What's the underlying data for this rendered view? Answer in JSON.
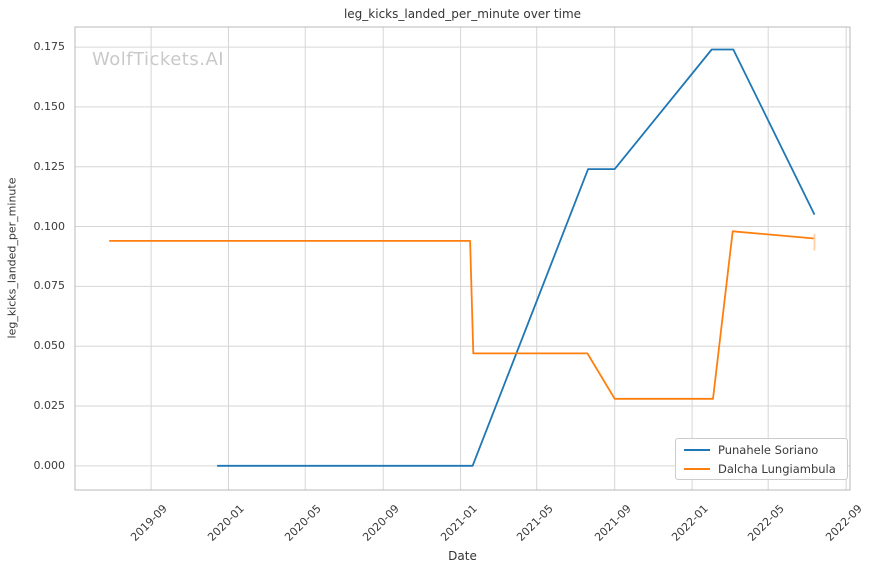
{
  "watermark": "WolfTickets.AI",
  "chart_data": {
    "type": "line",
    "title": "leg_kicks_landed_per_minute over time",
    "xlabel": "Date",
    "ylabel": "leg_kicks_landed_per_minute",
    "grid": true,
    "legend_position": "lower right",
    "x_ticks": [
      "2019-09",
      "2020-01",
      "2020-05",
      "2020-09",
      "2021-01",
      "2021-05",
      "2021-09",
      "2022-01",
      "2022-05",
      "2022-09"
    ],
    "y_ticks": [
      "0.000",
      "0.025",
      "0.050",
      "0.075",
      "0.100",
      "0.125",
      "0.150",
      "0.175"
    ],
    "xlim": [
      "2019-05-04",
      "2022-09-07"
    ],
    "ylim": [
      -0.0101,
      0.1834
    ],
    "colors": {
      "grid": "#d6d6d6",
      "spine": "#b8b8b8",
      "text": "#3a3a3a",
      "watermark": "#c9c9c9"
    },
    "series": [
      {
        "name": "Punahele Soriano",
        "color": "#1f77b4",
        "points": [
          [
            "2019-12-14",
            0.0
          ],
          [
            "2021-01-20",
            0.0
          ],
          [
            "2021-07-21",
            0.124
          ],
          [
            "2021-09-01",
            0.124
          ],
          [
            "2022-02-01",
            0.174
          ],
          [
            "2022-03-07",
            0.174
          ],
          [
            "2022-07-13",
            0.105
          ]
        ]
      },
      {
        "name": "Dalcha Lungiambula",
        "color": "#ff7f0e",
        "points": [
          [
            "2019-06-27",
            0.094
          ],
          [
            "2021-01-16",
            0.094
          ],
          [
            "2021-01-21",
            0.047
          ],
          [
            "2021-07-20",
            0.047
          ],
          [
            "2021-09-01",
            0.028
          ],
          [
            "2022-02-03",
            0.028
          ],
          [
            "2022-03-06",
            0.098
          ],
          [
            "2022-07-13",
            0.095
          ]
        ],
        "end_cap": {
          "date": "2022-07-13",
          "from": 0.09,
          "to": 0.097,
          "color": "#ffd0a4"
        }
      }
    ]
  }
}
